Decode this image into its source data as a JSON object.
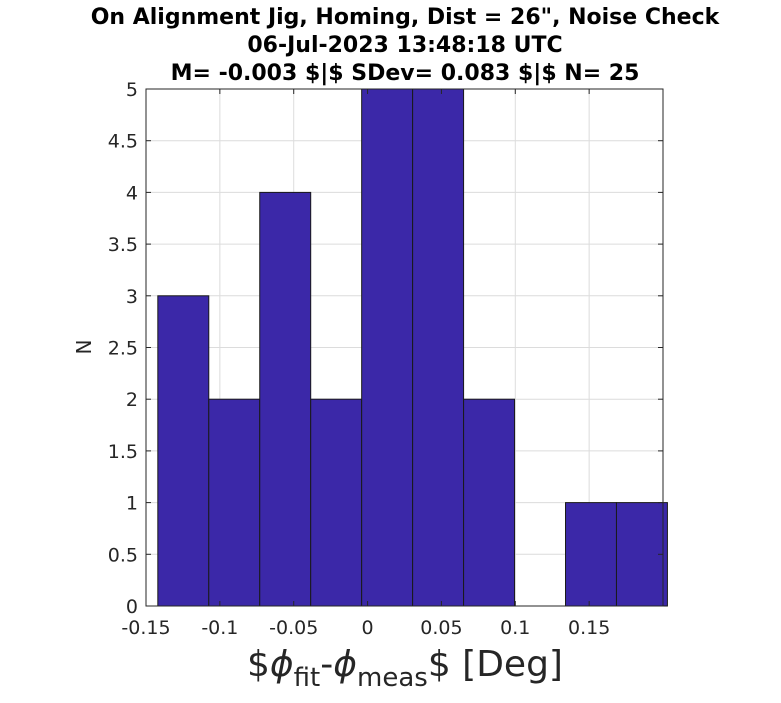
{
  "chart_data": {
    "type": "bar",
    "title_lines": [
      "On Alignment Jig, Homing, Dist = 26\", Noise Check",
      "06-Jul-2023 13:48:18 UTC",
      "M= -0.003 $|$ SDev= 0.083 $|$ N= 25"
    ],
    "xlabel": {
      "prefix": "$",
      "phi1": "ϕ",
      "sub1": "fit",
      "dash": "-",
      "phi2": "ϕ",
      "sub2": "meas",
      "suffix": "$ [Deg]"
    },
    "ylabel": "N",
    "xlim": [
      -0.15,
      0.2
    ],
    "ylim": [
      0,
      5
    ],
    "xticks": [
      {
        "value": -0.15,
        "label": "-0.15"
      },
      {
        "value": -0.1,
        "label": "-0.1"
      },
      {
        "value": -0.05,
        "label": "-0.05"
      },
      {
        "value": 0,
        "label": "0"
      },
      {
        "value": 0.05,
        "label": "0.05"
      },
      {
        "value": 0.1,
        "label": "0.1"
      },
      {
        "value": 0.15,
        "label": "0.15"
      }
    ],
    "yticks": [
      {
        "value": 0,
        "label": "0"
      },
      {
        "value": 0.5,
        "label": "0.5"
      },
      {
        "value": 1,
        "label": "1"
      },
      {
        "value": 1.5,
        "label": "1.5"
      },
      {
        "value": 2,
        "label": "2"
      },
      {
        "value": 2.5,
        "label": "2.5"
      },
      {
        "value": 3,
        "label": "3"
      },
      {
        "value": 3.5,
        "label": "3.5"
      },
      {
        "value": 4,
        "label": "4"
      },
      {
        "value": 4.5,
        "label": "4.5"
      },
      {
        "value": 5,
        "label": "5"
      }
    ],
    "bin_edges": [
      -0.142,
      -0.1075,
      -0.073,
      -0.0385,
      -0.004,
      0.0305,
      0.065,
      0.0995,
      0.134,
      0.1685,
      0.203
    ],
    "counts": [
      3,
      2,
      4,
      2,
      5,
      5,
      2,
      0,
      1,
      1
    ],
    "bar_color": "#3b28a8",
    "grid": true
  }
}
